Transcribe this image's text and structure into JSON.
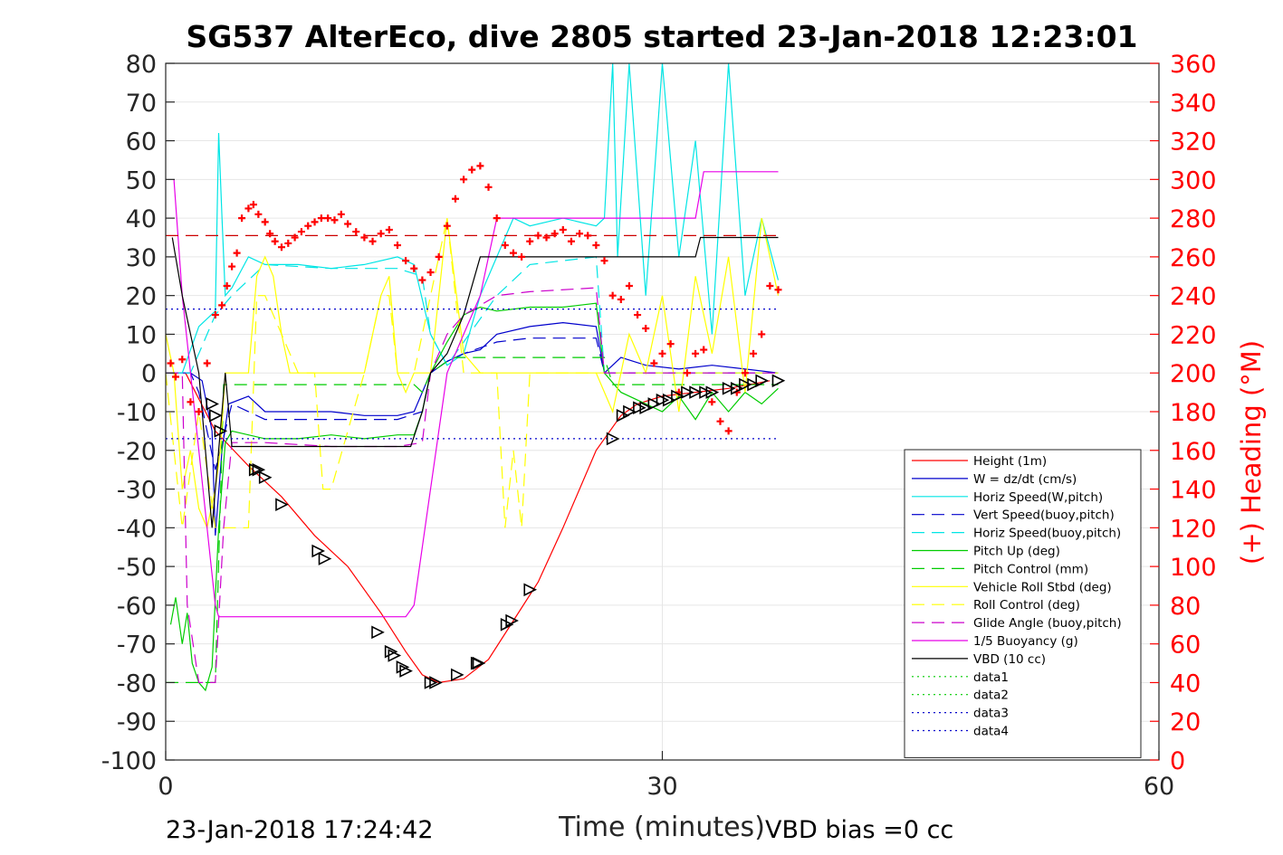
{
  "chart_data": {
    "type": "line",
    "title": "SG537 AlterEco, dive 2805 started 23-Jan-2018 12:23:01",
    "xlabel": "Time (minutes)",
    "ylabel": "",
    "y2label": "(+) Heading (°M)",
    "footer_left": "23-Jan-2018 17:24:42",
    "footer_right": "VBD bias =0 cc",
    "xlim": [
      0,
      60
    ],
    "ylim": [
      -100,
      80
    ],
    "y2lim": [
      0,
      360
    ],
    "xticks": [
      0,
      30,
      60
    ],
    "yticks": [
      80,
      70,
      60,
      50,
      40,
      30,
      20,
      10,
      0,
      -10,
      -20,
      -30,
      -40,
      -50,
      -60,
      -70,
      -80,
      -90,
      -100
    ],
    "y2ticks": [
      360,
      340,
      320,
      300,
      280,
      260,
      240,
      220,
      200,
      180,
      160,
      140,
      120,
      100,
      80,
      60,
      40,
      20,
      0
    ],
    "grid": true,
    "legend_position": "lower-right",
    "colors": {
      "right_axis": "#ff0000"
    },
    "series": [
      {
        "name": "Height (1m)",
        "color": "#ff0000",
        "style": "solid",
        "x": [
          1.2,
          3.0,
          5.0,
          7.0,
          9.0,
          11.0,
          13.0,
          14.5,
          15.5,
          16.5,
          18.0,
          19.5,
          21.0,
          22.5,
          24.0,
          26.0,
          27.5,
          28.5,
          30.0,
          32.0,
          34.0,
          36.5
        ],
        "y": [
          0,
          -15,
          -24,
          -32,
          -42,
          -50,
          -62,
          -72,
          -78,
          -80,
          -79,
          -74,
          -64,
          -54,
          -40,
          -20,
          -11,
          -8,
          -6,
          -5,
          -4,
          -2
        ]
      },
      {
        "name": "W = dz/dt (cm/s)",
        "color": "#0000cc",
        "style": "solid",
        "x": [
          0,
          1.5,
          2.2,
          2.8,
          3.0,
          3.4,
          3.8,
          5.0,
          6.0,
          8.0,
          10.0,
          12.0,
          14.0,
          15.0,
          16.0,
          17.0,
          18.0,
          19.0,
          20.0,
          22.0,
          24.0,
          26.0,
          26.5,
          27.5,
          29.0,
          31.0,
          33.0,
          35.0,
          37.0
        ],
        "y": [
          0,
          0,
          -2,
          -15,
          -42,
          -20,
          -8,
          -6,
          -10,
          -10,
          -10,
          -11,
          -11,
          -10,
          0,
          3,
          5,
          6,
          10,
          12,
          13,
          12,
          0,
          4,
          2,
          1,
          2,
          1,
          0
        ]
      },
      {
        "name": "Horiz Speed(W,pitch)",
        "color": "#00e5e5",
        "style": "solid",
        "x": [
          0,
          1.0,
          2.0,
          2.5,
          3.0,
          3.2,
          3.4,
          3.6,
          4.0,
          5.0,
          6.0,
          8.0,
          10.0,
          12.0,
          14.0,
          15.0,
          16.0,
          17.0,
          18.0,
          19.0,
          20.0,
          21.0,
          22.0,
          24.0,
          26.0,
          26.5,
          27.0,
          27.3,
          28.0,
          29.0,
          30.0,
          31.0,
          32.0,
          33.0,
          34.0,
          35.0,
          36.0,
          37.0
        ],
        "y": [
          0,
          0,
          12,
          14,
          16,
          62,
          40,
          20,
          22,
          30,
          28,
          28,
          27,
          28,
          30,
          28,
          10,
          2,
          5,
          20,
          30,
          40,
          38,
          40,
          38,
          40,
          80,
          30,
          80,
          20,
          80,
          30,
          60,
          10,
          80,
          20,
          40,
          24
        ]
      },
      {
        "name": "Vert Speed(buoy,pitch)",
        "color": "#0000cc",
        "style": "dashed",
        "x": [
          0,
          1.5,
          2.0,
          3.0,
          4.0,
          6.0,
          10.0,
          14.0,
          15.5,
          16.0,
          17.0,
          18.0,
          20.0,
          22.0,
          26.0,
          26.5,
          37.0
        ],
        "y": [
          0,
          0,
          -5,
          -25,
          -8,
          -12,
          -12,
          -12,
          -10,
          0,
          3,
          5,
          8,
          9,
          9,
          0,
          0
        ]
      },
      {
        "name": "Horiz Speed(buoy,pitch)",
        "color": "#00e5e5",
        "style": "dashed",
        "x": [
          0,
          1.5,
          2.0,
          3.0,
          4.0,
          6.0,
          10.0,
          14.0,
          15.5,
          16.0,
          17.0,
          18.0,
          20.0,
          22.0,
          26.0,
          26.5,
          37.0
        ],
        "y": [
          0,
          0,
          5,
          15,
          20,
          28,
          27,
          27,
          25,
          10,
          2,
          8,
          20,
          28,
          30,
          0,
          0
        ]
      },
      {
        "name": "Pitch Up (deg)",
        "color": "#00cc00",
        "style": "solid",
        "x": [
          0.3,
          0.6,
          1.0,
          1.3,
          1.6,
          2.0,
          2.4,
          2.8,
          3.2,
          3.6,
          4.0,
          5.0,
          6.0,
          8.0,
          10.0,
          12.0,
          14.0,
          15.0,
          15.5,
          16.0,
          17.0,
          18.0,
          19.0,
          20.0,
          22.0,
          24.0,
          26.0,
          26.5,
          27.5,
          29.0,
          30.0,
          31.0,
          32.0,
          33.0,
          34.0,
          35.0,
          36.0,
          37.0
        ],
        "y": [
          -65,
          -58,
          -70,
          -62,
          -75,
          -80,
          -82,
          -76,
          -40,
          -18,
          -15,
          -16,
          -17,
          -17,
          -16,
          -17,
          -16,
          -16,
          -10,
          0,
          8,
          15,
          17,
          16,
          17,
          17,
          18,
          0,
          -5,
          -8,
          -10,
          -6,
          -12,
          -5,
          -10,
          -5,
          -8,
          -4
        ]
      },
      {
        "name": "Pitch Control (mm)",
        "color": "#00cc00",
        "style": "dashed",
        "x": [
          0,
          1.5,
          2.0,
          3.0,
          3.5,
          4.0,
          15.0,
          15.5,
          16.0,
          17.0,
          17.5,
          26.5,
          27.0,
          37.0
        ],
        "y": [
          -80,
          -80,
          -80,
          -80,
          -3,
          -3,
          -3,
          -5,
          0,
          3,
          4,
          4,
          -3,
          -3
        ]
      },
      {
        "name": "Vehicle Roll Stbd (deg)",
        "color": "#ffff00",
        "style": "solid",
        "x": [
          0,
          0.5,
          1.0,
          1.5,
          2.0,
          2.5,
          3.0,
          3.3,
          3.6,
          4.0,
          5.0,
          5.5,
          6.0,
          6.5,
          7.0,
          7.5,
          8.0,
          10.0,
          12.0,
          13.0,
          13.5,
          14.0,
          14.5,
          15.0,
          16.0,
          17.0,
          18.0,
          19.0,
          20.0,
          21.0,
          22.0,
          24.0,
          26.0,
          27.0,
          28.0,
          29.0,
          30.0,
          31.0,
          32.0,
          33.0,
          34.0,
          35.0,
          36.0,
          37.0
        ],
        "y": [
          10,
          0,
          -30,
          -20,
          -35,
          -40,
          -30,
          -20,
          0,
          0,
          0,
          25,
          30,
          25,
          10,
          0,
          0,
          0,
          0,
          20,
          25,
          0,
          -5,
          0,
          0,
          40,
          5,
          0,
          0,
          0,
          0,
          0,
          0,
          -10,
          10,
          0,
          20,
          -10,
          25,
          5,
          30,
          -5,
          40,
          20
        ]
      },
      {
        "name": "Roll Control (deg)",
        "color": "#ffff00",
        "style": "dashed",
        "x": [
          0,
          1.0,
          2.0,
          3.0,
          4.0,
          5.0,
          5.5,
          6.0,
          8.0,
          9.0,
          9.5,
          10.0,
          12.0,
          13.0,
          13.5,
          14.0,
          15.0,
          17.0,
          18.0,
          19.0,
          20.0,
          20.5,
          21.0,
          21.5,
          22.0,
          24.0,
          26.0,
          27.0,
          37.0
        ],
        "y": [
          0,
          -40,
          -10,
          -40,
          -40,
          -40,
          20,
          20,
          0,
          0,
          -30,
          -30,
          0,
          20,
          20,
          0,
          0,
          40,
          0,
          0,
          0,
          -40,
          -20,
          -40,
          0,
          0,
          0,
          0,
          0
        ]
      },
      {
        "name": "Glide Angle (buoy,pitch)",
        "color": "#cc00cc",
        "style": "dashed",
        "x": [
          0,
          1.0,
          1.3,
          2.0,
          3.0,
          3.5,
          4.0,
          6.0,
          10.0,
          14.0,
          15.5,
          16.0,
          17.0,
          18.0,
          20.0,
          22.0,
          26.0,
          26.5,
          37.0
        ],
        "y": [
          0,
          0,
          -60,
          -80,
          -80,
          -40,
          -18,
          -18,
          -19,
          -19,
          -18,
          0,
          10,
          15,
          20,
          21,
          22,
          0,
          0
        ]
      },
      {
        "name": "1/5 Buoyancy (g)",
        "color": "#e800e8",
        "style": "solid",
        "x": [
          0.5,
          1.0,
          2.0,
          3.0,
          3.2,
          5.0,
          10.0,
          14.5,
          15.0,
          16.0,
          17.0,
          18.0,
          19.0,
          20.0,
          30.0,
          32.0,
          32.5,
          37.0
        ],
        "y": [
          50,
          20,
          -20,
          -60,
          -63,
          -63,
          -63,
          -63,
          -60,
          -30,
          0,
          10,
          20,
          40,
          40,
          40,
          52,
          52
        ]
      },
      {
        "name": "VBD (10 cc)",
        "color": "#000000",
        "style": "solid",
        "x": [
          0.4,
          1.0,
          2.0,
          2.8,
          3.2,
          3.6,
          4.0,
          6.0,
          10.0,
          14.0,
          14.8,
          15.5,
          16.0,
          17.0,
          18.0,
          19.0,
          20.0,
          26.0,
          32.0,
          32.3,
          33.0,
          37.0
        ],
        "y": [
          35,
          20,
          0,
          -40,
          -20,
          0,
          -19,
          -19,
          -19,
          -19,
          -19,
          -10,
          0,
          5,
          15,
          30,
          30,
          30,
          30,
          35,
          35,
          35
        ]
      },
      {
        "name": "data1",
        "color": "#00cc00",
        "style": "dotted",
        "x": [],
        "y": []
      },
      {
        "name": "data2",
        "color": "#00cc00",
        "style": "dotted",
        "x": [],
        "y": []
      },
      {
        "name": "data3",
        "color": "#0000cc",
        "style": "dotted",
        "x": [
          0,
          37
        ],
        "y": [
          16.5,
          16.5
        ]
      },
      {
        "name": "data4",
        "color": "#0000cc",
        "style": "dotted",
        "x": [
          0,
          37
        ],
        "y": [
          -17,
          -17
        ]
      }
    ],
    "heading_reference": {
      "color": "#cc0000",
      "style": "dashed",
      "x": [
        0,
        37
      ],
      "y2": 271
    },
    "heading_points": {
      "color": "#ff0000",
      "marker": "+",
      "x": [
        0.3,
        0.6,
        1.0,
        1.5,
        2.0,
        2.5,
        3.0,
        3.4,
        3.7,
        4.0,
        4.3,
        4.6,
        5.0,
        5.3,
        5.6,
        6.0,
        6.3,
        6.6,
        7.0,
        7.4,
        7.8,
        8.2,
        8.6,
        9.0,
        9.4,
        9.8,
        10.2,
        10.6,
        11.0,
        11.5,
        12.0,
        12.5,
        13.0,
        13.5,
        14.0,
        14.5,
        15.0,
        15.5,
        16.0,
        16.5,
        17.0,
        17.5,
        18.0,
        18.5,
        19.0,
        19.5,
        20.0,
        20.5,
        21.0,
        21.5,
        22.0,
        22.5,
        23.0,
        23.5,
        24.0,
        24.5,
        25.0,
        25.5,
        26.0,
        26.5,
        27.0,
        27.5,
        28.0,
        28.5,
        29.0,
        29.5,
        30.0,
        30.5,
        31.0,
        31.5,
        32.0,
        32.5,
        33.0,
        33.5,
        34.0,
        34.5,
        35.0,
        35.5,
        36.0,
        36.5,
        37.0
      ],
      "y2": [
        205,
        198,
        207,
        185,
        180,
        205,
        230,
        235,
        245,
        255,
        262,
        280,
        285,
        287,
        282,
        278,
        272,
        268,
        265,
        267,
        270,
        273,
        276,
        278,
        280,
        280,
        279,
        282,
        277,
        273,
        270,
        268,
        272,
        274,
        266,
        258,
        254,
        248,
        252,
        260,
        276,
        290,
        300,
        305,
        307,
        296,
        280,
        266,
        262,
        260,
        268,
        271,
        270,
        272,
        274,
        268,
        272,
        271,
        266,
        258,
        240,
        238,
        245,
        230,
        223,
        205,
        210,
        215,
        190,
        200,
        210,
        212,
        185,
        175,
        170,
        190,
        200,
        210,
        220,
        245,
        243
      ]
    },
    "height_markers": {
      "color": "#000000",
      "marker": "triangle",
      "x": [
        2.8,
        3.0,
        3.3,
        5.4,
        5.6,
        6.0,
        7.0,
        9.2,
        9.6,
        12.8,
        13.6,
        13.8,
        14.3,
        14.5,
        16.0,
        16.3,
        17.6,
        18.8,
        18.9,
        20.6,
        20.9,
        22.0,
        27.0,
        27.6,
        28.0,
        28.6,
        29.0,
        29.5,
        30.0,
        30.4,
        30.9,
        31.5,
        32.0,
        32.6,
        33.0,
        34.0,
        34.5,
        35.0,
        35.5,
        36.0,
        37.0
      ],
      "y": [
        -8,
        -11,
        -15,
        -25,
        -25,
        -27,
        -34,
        -46,
        -48,
        -67,
        -72,
        -73,
        -76,
        -77,
        -80,
        -80,
        -78,
        -75,
        -75,
        -65,
        -64,
        -56,
        -17,
        -11,
        -10,
        -9,
        -9,
        -8,
        -7,
        -7,
        -6,
        -5,
        -5,
        -5,
        -5,
        -4,
        -4,
        -3,
        -3,
        -2,
        -2
      ]
    }
  }
}
